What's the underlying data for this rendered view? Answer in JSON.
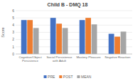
{
  "chart_data": {
    "type": "bar",
    "title": "Child B - DMQ 18",
    "categories": [
      "Cognitive/Object\nPersistence",
      "Social Persistence\nwith Adult",
      "Mastery Pleasure",
      "Negative Reaction"
    ],
    "series": [
      {
        "name": "PRE",
        "color": "#4472C4",
        "values": [
          4.7,
          5.0,
          4.7,
          2.8
        ]
      },
      {
        "name": "POST",
        "color": "#ED7D31",
        "values": [
          4.7,
          4.2,
          5.0,
          2.4
        ]
      },
      {
        "name": "MEAN",
        "color": "#A5A5A5",
        "values": [
          3.6,
          3.6,
          4.1,
          3.1
        ]
      }
    ],
    "ylabel": "Score",
    "ylim": [
      0,
      6
    ],
    "yticks": [
      0,
      1,
      2,
      3,
      4,
      5,
      6
    ],
    "grid": true,
    "legend": "bottom"
  }
}
